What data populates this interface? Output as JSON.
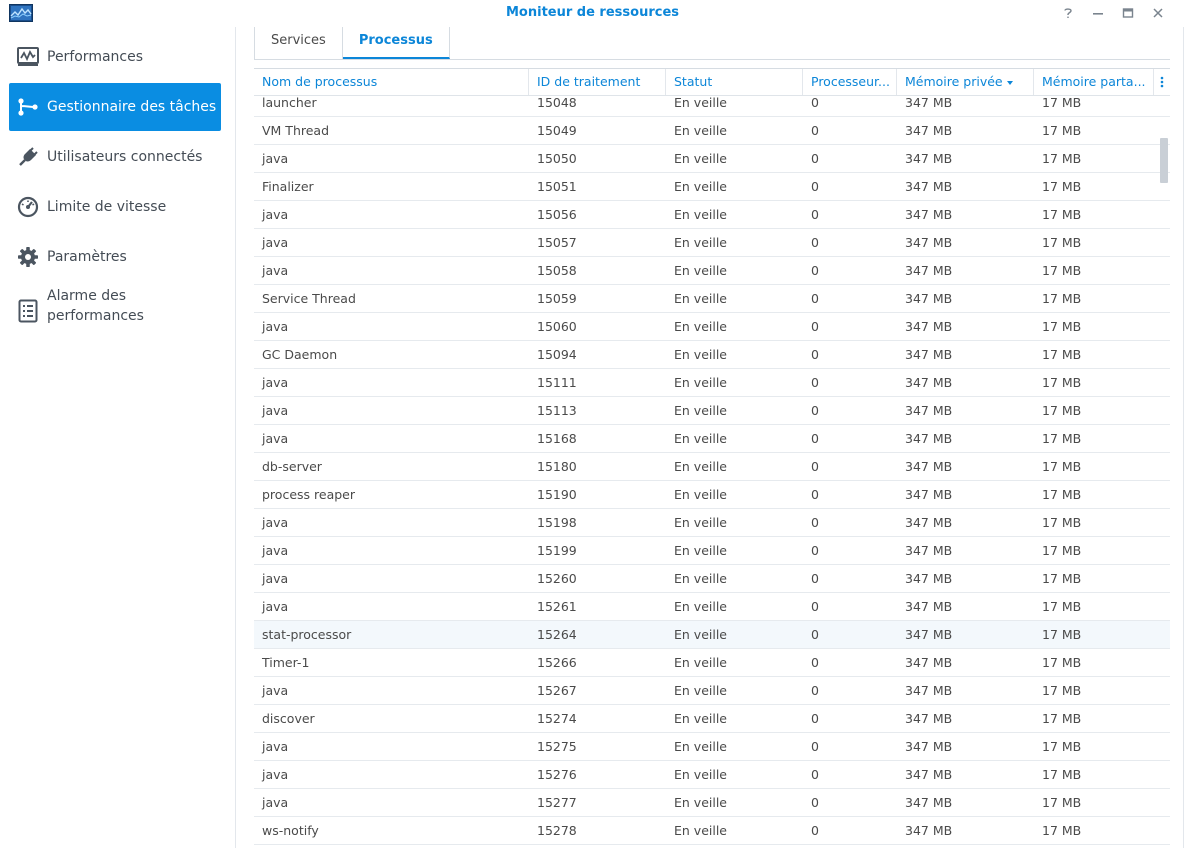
{
  "window": {
    "title": "Moniteur de ressources",
    "icon": "resource-monitor-icon",
    "controls": [
      "help-icon",
      "minimize-icon",
      "maximize-icon",
      "close-icon"
    ]
  },
  "sidebar": {
    "items": [
      {
        "label": "Performances",
        "icon": "performance-chart-icon",
        "active": false
      },
      {
        "label": "Gestionnaire des tâches",
        "icon": "task-manager-icon",
        "active": true
      },
      {
        "label": "Utilisateurs connectés",
        "icon": "plug-icon",
        "active": false
      },
      {
        "label": "Limite de vitesse",
        "icon": "speedometer-icon",
        "active": false
      },
      {
        "label": "Paramètres",
        "icon": "gear-icon",
        "active": false
      },
      {
        "label_line1": "Alarme des",
        "label_line2": "performances",
        "icon": "alarm-list-icon",
        "active": false
      }
    ]
  },
  "tabs": [
    {
      "label": "Services",
      "active": false
    },
    {
      "label": "Processus",
      "active": true
    }
  ],
  "table": {
    "columns": [
      "Nom de processus",
      "ID de traitement",
      "Statut",
      "Processeur...",
      "Mémoire privée",
      "Mémoire parta..."
    ],
    "sorted_column": "Mémoire privée",
    "rows": [
      [
        "launcher",
        "15048",
        "En veille",
        "0",
        "347 MB",
        "17 MB"
      ],
      [
        "VM Thread",
        "15049",
        "En veille",
        "0",
        "347 MB",
        "17 MB"
      ],
      [
        "java",
        "15050",
        "En veille",
        "0",
        "347 MB",
        "17 MB"
      ],
      [
        "Finalizer",
        "15051",
        "En veille",
        "0",
        "347 MB",
        "17 MB"
      ],
      [
        "java",
        "15056",
        "En veille",
        "0",
        "347 MB",
        "17 MB"
      ],
      [
        "java",
        "15057",
        "En veille",
        "0",
        "347 MB",
        "17 MB"
      ],
      [
        "java",
        "15058",
        "En veille",
        "0",
        "347 MB",
        "17 MB"
      ],
      [
        "Service Thread",
        "15059",
        "En veille",
        "0",
        "347 MB",
        "17 MB"
      ],
      [
        "java",
        "15060",
        "En veille",
        "0",
        "347 MB",
        "17 MB"
      ],
      [
        "GC Daemon",
        "15094",
        "En veille",
        "0",
        "347 MB",
        "17 MB"
      ],
      [
        "java",
        "15111",
        "En veille",
        "0",
        "347 MB",
        "17 MB"
      ],
      [
        "java",
        "15113",
        "En veille",
        "0",
        "347 MB",
        "17 MB"
      ],
      [
        "java",
        "15168",
        "En veille",
        "0",
        "347 MB",
        "17 MB"
      ],
      [
        "db-server",
        "15180",
        "En veille",
        "0",
        "347 MB",
        "17 MB"
      ],
      [
        "process reaper",
        "15190",
        "En veille",
        "0",
        "347 MB",
        "17 MB"
      ],
      [
        "java",
        "15198",
        "En veille",
        "0",
        "347 MB",
        "17 MB"
      ],
      [
        "java",
        "15199",
        "En veille",
        "0",
        "347 MB",
        "17 MB"
      ],
      [
        "java",
        "15260",
        "En veille",
        "0",
        "347 MB",
        "17 MB"
      ],
      [
        "java",
        "15261",
        "En veille",
        "0",
        "347 MB",
        "17 MB"
      ],
      [
        "stat-processor",
        "15264",
        "En veille",
        "0",
        "347 MB",
        "17 MB"
      ],
      [
        "Timer-1",
        "15266",
        "En veille",
        "0",
        "347 MB",
        "17 MB"
      ],
      [
        "java",
        "15267",
        "En veille",
        "0",
        "347 MB",
        "17 MB"
      ],
      [
        "discover",
        "15274",
        "En veille",
        "0",
        "347 MB",
        "17 MB"
      ],
      [
        "java",
        "15275",
        "En veille",
        "0",
        "347 MB",
        "17 MB"
      ],
      [
        "java",
        "15276",
        "En veille",
        "0",
        "347 MB",
        "17 MB"
      ],
      [
        "java",
        "15277",
        "En veille",
        "0",
        "347 MB",
        "17 MB"
      ],
      [
        "ws-notify",
        "15278",
        "En veille",
        "0",
        "347 MB",
        "17 MB"
      ]
    ],
    "hovered_row": 19
  },
  "colors": {
    "accent": "#0a8de2",
    "header_text": "#0c86d8"
  }
}
